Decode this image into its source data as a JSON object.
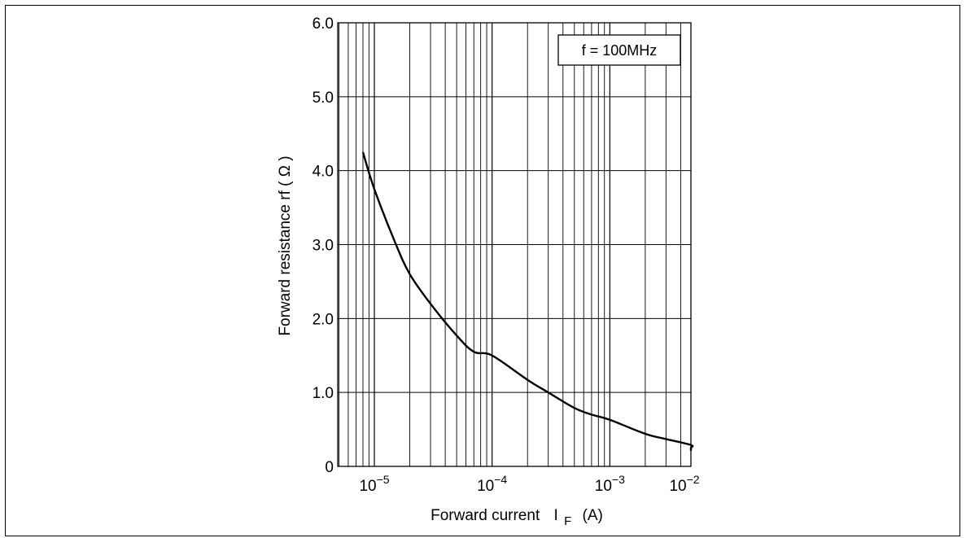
{
  "chart_data": {
    "type": "line",
    "x_scale": "log",
    "xlim": [
      1e-05,
      0.01
    ],
    "ylim": [
      0,
      6.0
    ],
    "grid": true,
    "xlabel": "Forward current",
    "xlabel_symbol": "I",
    "xlabel_subscript": "F",
    "xlabel_unit": "(A)",
    "ylabel": "Forward resistance  rf  ( Ω )",
    "annotation": "f = 100MHz",
    "x_ticks": [
      {
        "base": "10",
        "exp": "−5"
      },
      {
        "base": "10",
        "exp": "−4"
      },
      {
        "base": "10",
        "exp": "−3"
      },
      {
        "base": "10",
        "exp": "−2"
      }
    ],
    "y_ticks": [
      {
        "value": 0,
        "label": "0"
      },
      {
        "value": 1,
        "label": "1.0"
      },
      {
        "value": 2,
        "label": "2.0"
      },
      {
        "value": 3,
        "label": "3.0"
      },
      {
        "value": 4,
        "label": "4.0"
      },
      {
        "value": 5,
        "label": "5.0"
      },
      {
        "value": 6,
        "label": "6.0"
      }
    ],
    "series": [
      {
        "x": [
          8e-06,
          1e-05,
          1.5e-05,
          2e-05,
          3e-05,
          5e-05,
          7e-05,
          0.0001,
          0.0002,
          0.0003,
          0.0005,
          0.0007,
          0.001,
          0.002,
          0.003,
          0.005,
          0.007,
          0.01
        ],
        "y": [
          4.25,
          3.75,
          3.03,
          2.6,
          2.2,
          1.77,
          1.55,
          1.5,
          1.17,
          1.0,
          0.79,
          0.7,
          0.63,
          0.44,
          0.37,
          0.29,
          0.25,
          0.21
        ]
      }
    ]
  }
}
